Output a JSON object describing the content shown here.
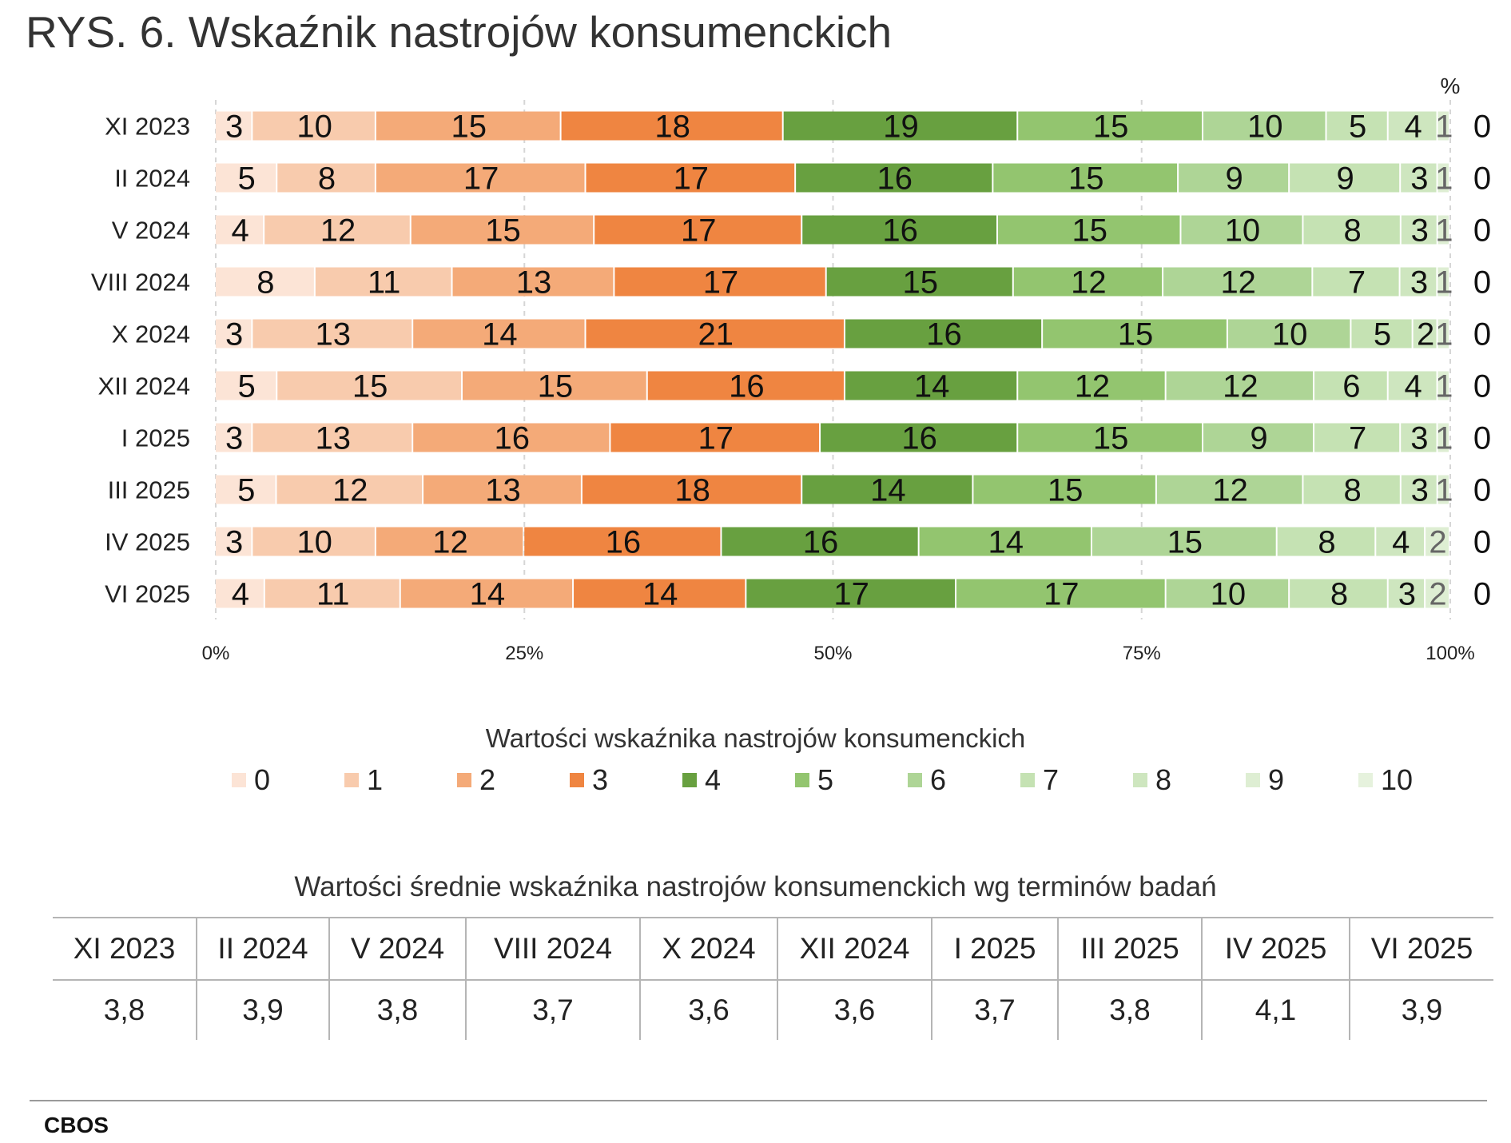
{
  "title": "RYS. 6. Wskaźnik nastrojów konsumenckich",
  "chart_data": {
    "type": "bar",
    "orientation": "horizontal",
    "stacked": true,
    "unit": "%",
    "categories": [
      "XI 2023",
      "II 2024",
      "V 2024",
      "VIII 2024",
      "X 2024",
      "XII 2024",
      "I 2025",
      "III 2025",
      "IV 2025",
      "VI 2025"
    ],
    "series": [
      {
        "name": "0",
        "color": "#FCE4D6",
        "values": [
          3,
          5,
          4,
          8,
          3,
          5,
          3,
          5,
          3,
          4
        ]
      },
      {
        "name": "1",
        "color": "#F8CBAD",
        "values": [
          10,
          8,
          12,
          11,
          13,
          15,
          13,
          12,
          10,
          11
        ]
      },
      {
        "name": "2",
        "color": "#F4AA78",
        "values": [
          15,
          17,
          15,
          13,
          14,
          15,
          16,
          13,
          12,
          14
        ]
      },
      {
        "name": "3",
        "color": "#EF8541",
        "values": [
          18,
          17,
          17,
          17,
          21,
          16,
          17,
          18,
          16,
          14
        ]
      },
      {
        "name": "4",
        "color": "#68A040",
        "values": [
          19,
          16,
          16,
          15,
          16,
          14,
          16,
          14,
          16,
          17
        ]
      },
      {
        "name": "5",
        "color": "#93C56F",
        "values": [
          15,
          15,
          15,
          12,
          15,
          12,
          15,
          15,
          14,
          17
        ]
      },
      {
        "name": "6",
        "color": "#AED596",
        "values": [
          10,
          9,
          10,
          12,
          10,
          12,
          9,
          12,
          15,
          10
        ]
      },
      {
        "name": "7",
        "color": "#C5E2B3",
        "values": [
          5,
          9,
          8,
          7,
          5,
          6,
          7,
          8,
          8,
          8
        ]
      },
      {
        "name": "8",
        "color": "#CEE6BF",
        "values": [
          4,
          3,
          3,
          3,
          2,
          4,
          3,
          3,
          4,
          3
        ]
      },
      {
        "name": "9",
        "color": "#DEEED3",
        "values": [
          1,
          1,
          1,
          1,
          1,
          1,
          1,
          1,
          2,
          2
        ]
      },
      {
        "name": "10",
        "color": "#E6F2DD",
        "values": [
          0,
          0,
          0,
          0,
          0,
          0,
          0,
          0,
          0,
          0
        ]
      }
    ],
    "x_ticks": [
      "0%",
      "25%",
      "50%",
      "75%",
      "100%"
    ],
    "xlim": [
      0,
      100
    ],
    "legend_title": "Wartości wskaźnika nastrojów konsumenckich",
    "legend_position": "bottom",
    "grid": true
  },
  "mean_table": {
    "title": "Wartości średnie wskaźnika nastrojów konsumenckich wg terminów badań",
    "headers": [
      "XI 2023",
      "II 2024",
      "V 2024",
      "VIII 2024",
      "X 2024",
      "XII 2024",
      "I 2025",
      "III 2025",
      "IV 2025",
      "VI 2025"
    ],
    "values": [
      "3,8",
      "3,9",
      "3,8",
      "3,7",
      "3,6",
      "3,6",
      "3,7",
      "3,8",
      "4,1",
      "3,9"
    ]
  },
  "footer": "CBOS"
}
